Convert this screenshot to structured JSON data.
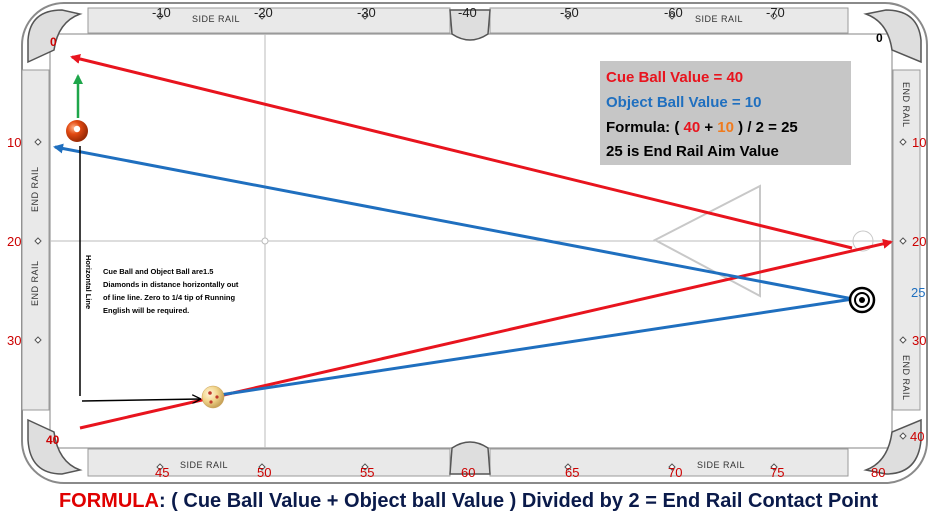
{
  "table": {
    "side_rail_label": "SIDE RAIL",
    "end_rail_label": "END RAIL",
    "top_diamond_labels": [
      "-10",
      "-20",
      "-30",
      "-40",
      "-50",
      "-60",
      "-70"
    ],
    "bottom_diamond_labels": [
      "45",
      "50",
      "55",
      "60",
      "65",
      "70",
      "75"
    ],
    "left_rail_labels": [
      "10",
      "20",
      "30"
    ],
    "right_rail_labels": [
      "10",
      "20",
      "30"
    ],
    "corner_labels": {
      "top_left": "0",
      "top_right": "0",
      "bottom_left": "40",
      "bottom_right": "80",
      "right_40": "40"
    },
    "target_label": "25"
  },
  "info_box": {
    "cue_value": "Cue Ball Value = 40",
    "object_value": "Object Ball Value = 10",
    "formula_prefix": "Formula: ( ",
    "formula_a": "40",
    "formula_plus": " + ",
    "formula_b": "10",
    "formula_suffix": " ) / 2 = 25",
    "aim_text": "25 is End Rail Aim Value"
  },
  "notes": {
    "horizontal_line": "Horizontal Line",
    "distance_note": [
      "Cue Ball and Object Ball are1.5",
      "Diamonds in distance horizontally out",
      "of line line.  Zero to 1/4 tip of Running",
      "English will be required."
    ]
  },
  "formula": {
    "key": "FORMULA",
    "rest": ": ( Cue Ball Value + Object ball Value  ) Divided by 2 = End Rail Contact Point"
  },
  "colors": {
    "red_path": "#e8141e",
    "blue_path": "#1f6fbf",
    "green_arrow": "#1ea64a",
    "info_bg": "#c6c6c6",
    "object_ball": "#e24a12",
    "cue_ball": "#f2d58c"
  }
}
